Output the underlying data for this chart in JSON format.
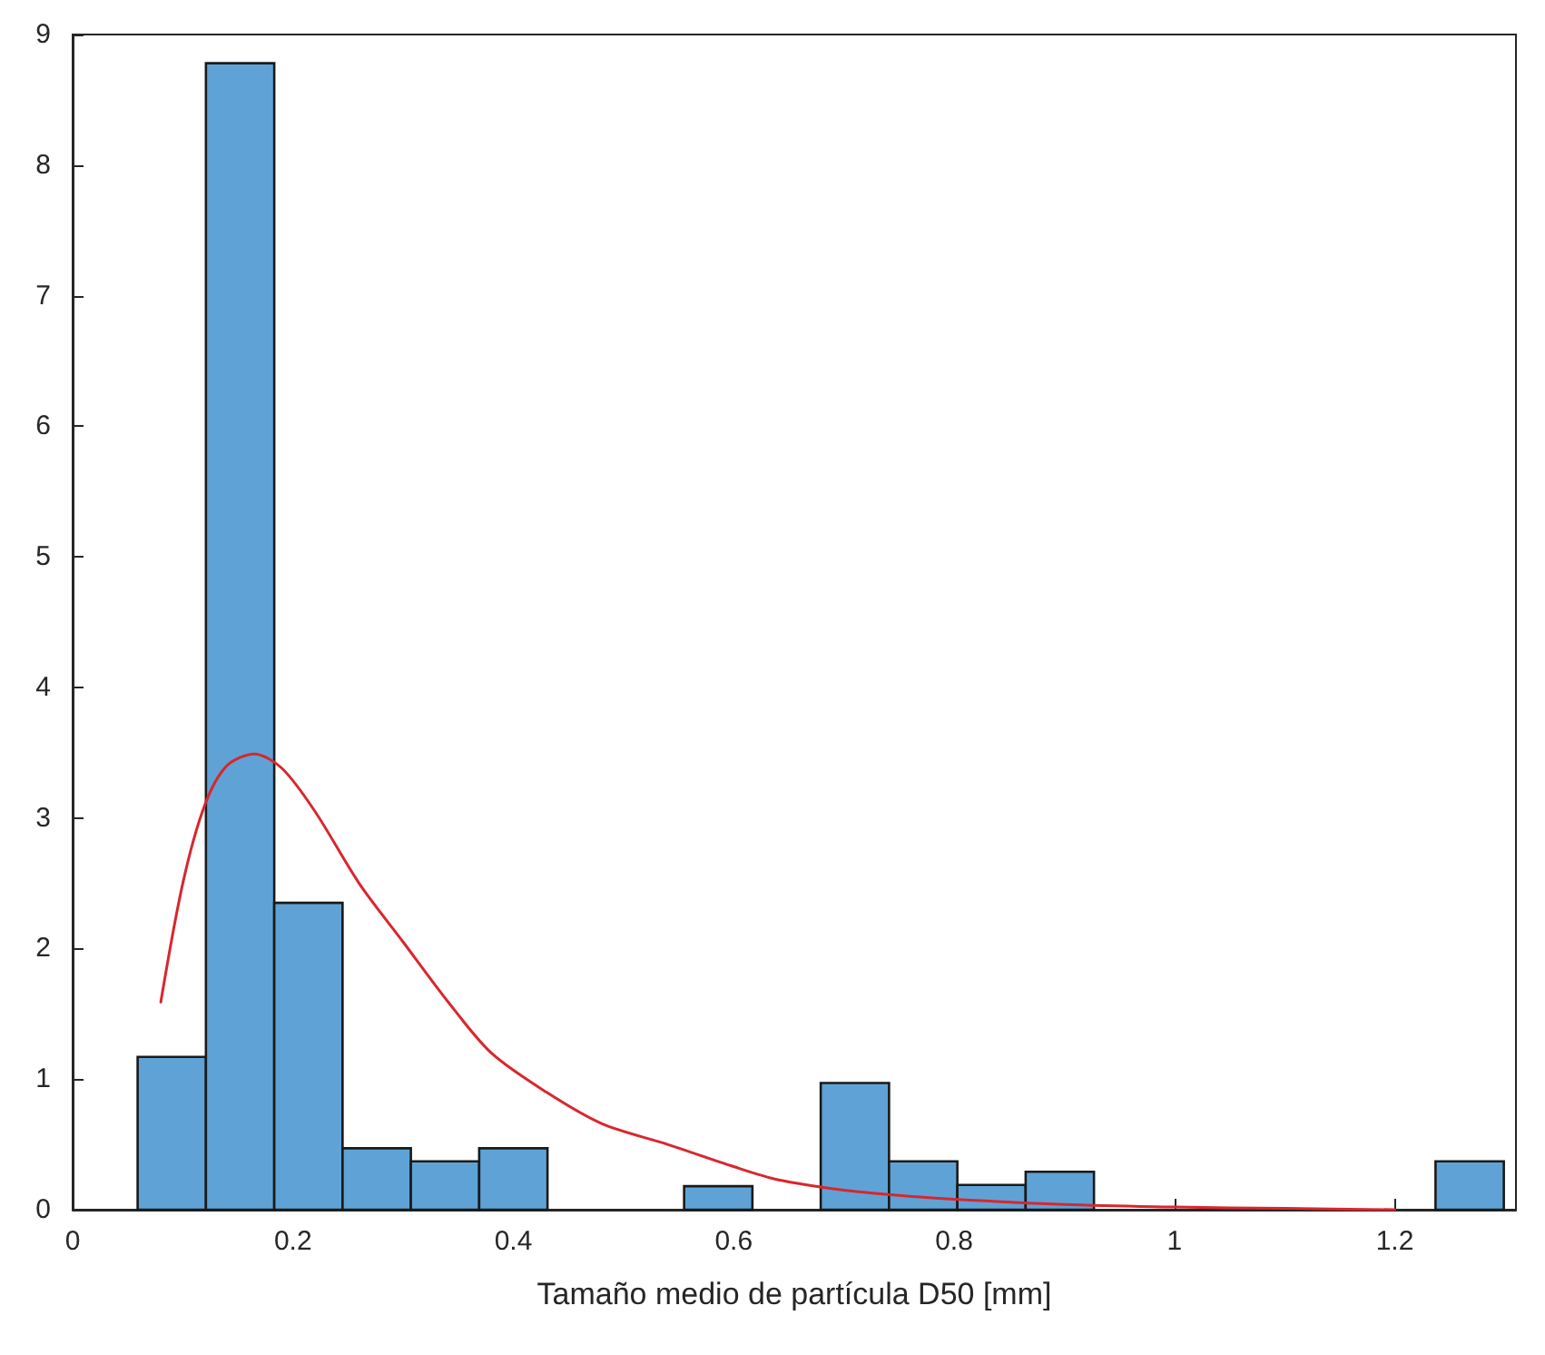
{
  "chart_data": {
    "type": "histogram",
    "xlabel": "Tamaño medio de partícula D50 [mm]",
    "bins": [
      0.059,
      0.121,
      0.183,
      0.245,
      0.307,
      0.369,
      0.431,
      0.493,
      0.555,
      0.617,
      0.679,
      0.741,
      0.803,
      0.865,
      0.927,
      0.989,
      1.051,
      1.113,
      1.175,
      1.237,
      1.299
    ],
    "values": [
      1.17,
      8.78,
      2.35,
      0.47,
      0.37,
      0.47,
      0,
      0,
      0.18,
      0,
      0.97,
      0.37,
      0.19,
      0.29,
      0,
      0,
      0,
      0,
      0,
      0.37
    ],
    "color": "#5fa3d6",
    "series": [
      {
        "type": "line",
        "color": "#d9262e",
        "x": [
          0.08,
          0.1,
          0.12,
          0.14,
          0.165,
          0.19,
          0.22,
          0.26,
          0.3,
          0.34,
          0.38,
          0.43,
          0.48,
          0.54,
          0.6,
          0.64,
          0.7,
          0.75,
          0.8,
          0.9,
          1.0,
          1.1,
          1.2
        ],
        "values": [
          1.59,
          2.5,
          3.1,
          3.4,
          3.49,
          3.38,
          3.05,
          2.5,
          2.05,
          1.6,
          1.2,
          0.9,
          0.66,
          0.5,
          0.33,
          0.23,
          0.15,
          0.11,
          0.08,
          0.04,
          0.02,
          0.01,
          0
        ]
      }
    ],
    "xlim": [
      0,
      1.31
    ],
    "xticks": [
      0,
      0.2,
      0.4,
      0.6,
      0.8,
      1,
      1.2
    ],
    "ylim": [
      0,
      9
    ],
    "yticks": [
      0,
      1,
      2,
      3,
      4,
      5,
      6,
      7,
      8,
      9
    ],
    "grid": false,
    "legend": false,
    "marker": "none",
    "line_style": "solid"
  }
}
